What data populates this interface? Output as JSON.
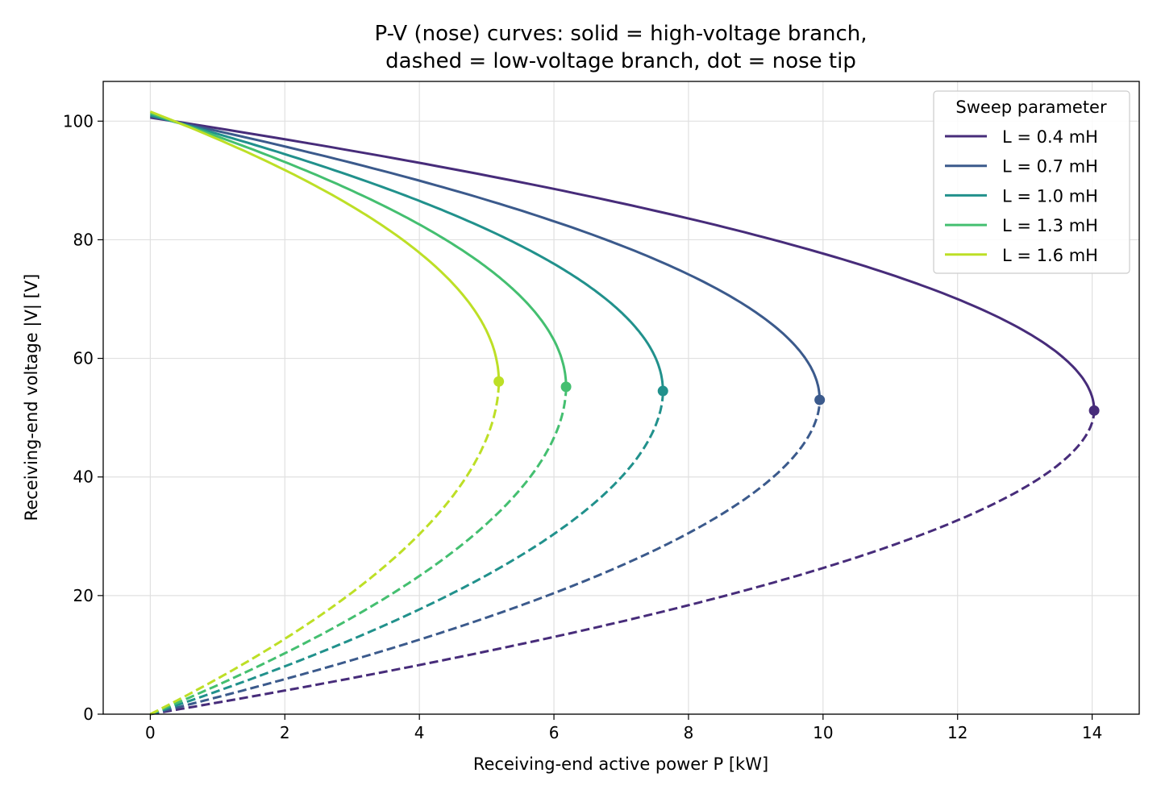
{
  "chart_data": {
    "type": "line",
    "title": "P-V (nose) curves: solid = high-voltage branch,",
    "subtitle": "dashed = low-voltage branch, dot = nose tip",
    "xlabel": "Receiving-end active power P [kW]",
    "ylabel": "Receiving-end voltage |V| [V]",
    "xlim": [
      -0.7,
      14.7
    ],
    "ylim": [
      0,
      106.7
    ],
    "xticks": [
      0,
      2,
      4,
      6,
      8,
      10,
      12,
      14
    ],
    "yticks": [
      0,
      20,
      40,
      60,
      80,
      100
    ],
    "grid": true,
    "legend": {
      "title": "Sweep parameter",
      "position": "top-right"
    },
    "series": [
      {
        "name": "L = 0.4 mH",
        "color": "#472c7a",
        "nose": {
          "P": 14.03,
          "V": 51.2
        },
        "v_noload_high": 100.6,
        "v_origin": 0
      },
      {
        "name": "L = 0.7 mH",
        "color": "#3b5a8c",
        "nose": {
          "P": 9.95,
          "V": 53.0
        },
        "v_noload_high": 100.8,
        "v_origin": 0
      },
      {
        "name": "L = 1.0 mH",
        "color": "#21918c",
        "nose": {
          "P": 7.62,
          "V": 54.5
        },
        "v_noload_high": 101.0,
        "v_origin": 0
      },
      {
        "name": "L = 1.3 mH",
        "color": "#44bf70",
        "nose": {
          "P": 6.18,
          "V": 55.2
        },
        "v_noload_high": 101.3,
        "v_origin": 0
      },
      {
        "name": "L = 1.6 mH",
        "color": "#bddf26",
        "nose": {
          "P": 5.18,
          "V": 56.1
        },
        "v_noload_high": 101.6,
        "v_origin": 0
      }
    ]
  }
}
